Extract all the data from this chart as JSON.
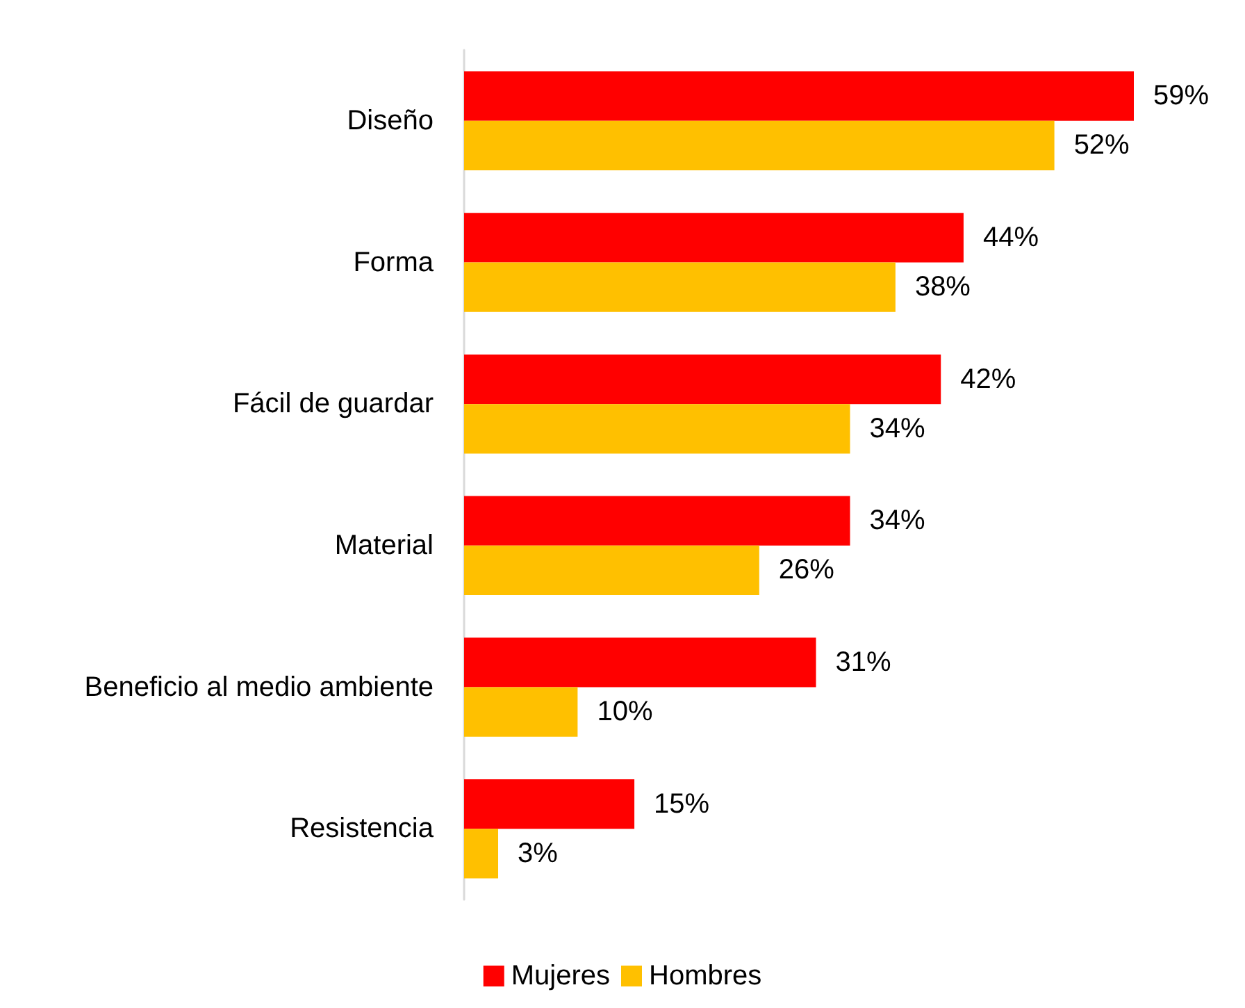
{
  "chart_data": {
    "type": "bar",
    "orientation": "horizontal",
    "categories": [
      "Diseño",
      "Forma",
      "Fácil de guardar",
      "Material",
      "Beneficio al medio ambiente",
      "Resistencia"
    ],
    "series": [
      {
        "name": "Mujeres",
        "color": "#ff0000",
        "values": [
          59,
          44,
          42,
          34,
          31,
          15
        ],
        "value_labels": [
          "59%",
          "44%",
          "42%",
          "34%",
          "31%",
          "15%"
        ]
      },
      {
        "name": "Hombres",
        "color": "#ffc000",
        "values": [
          52,
          38,
          34,
          26,
          10,
          3
        ],
        "value_labels": [
          "52%",
          "38%",
          "34%",
          "26%",
          "10%",
          "3%"
        ]
      }
    ],
    "legend": "bottom"
  }
}
